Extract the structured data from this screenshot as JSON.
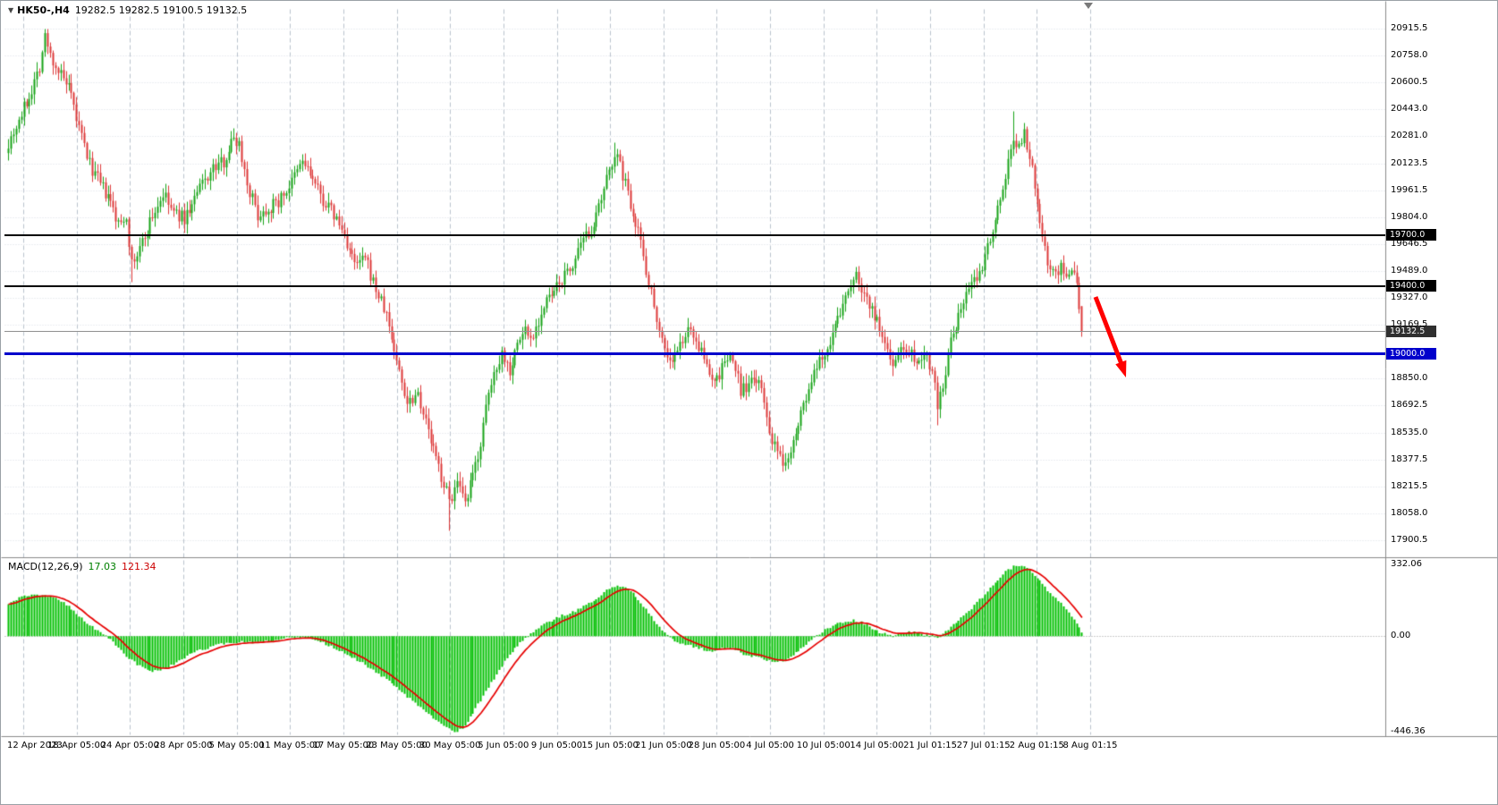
{
  "colors": {
    "up": "#17a317",
    "down": "#dd3838",
    "macd_hist": "#00bf00",
    "macd_signal": "#e60000",
    "grid_v": "#b9c2cc",
    "grid_h": "#d9dde2",
    "separator": "#8a8a8a",
    "axis_text": "#000000"
  },
  "symbol_bar": {
    "triangle_icon": "down-triangle",
    "symbol_tf": "HK50-,H4",
    "ohlc": "19282.5 19282.5 19100.5 19132.5"
  },
  "macd_label": {
    "name": "MACD(12,26,9)",
    "main_value": "17.03",
    "signal_value": "121.34"
  },
  "arrow": {
    "color": "#ff0000",
    "note": "red down-right arrow annotation after last candle, pointing below 19000 line"
  },
  "chart_data": {
    "type": "candlestick",
    "symbol": "HK50-",
    "timeframe": "H4",
    "last_bar": {
      "open": 19282.5,
      "high": 19282.5,
      "low": 19100.5,
      "close": 19132.5
    },
    "price_axis": {
      "max": 20915.5,
      "min": 17900.5,
      "labels": [
        "20915.5",
        "20758.0",
        "20600.5",
        "20443.0",
        "20281.0",
        "20123.5",
        "19961.5",
        "19804.0",
        "19646.5",
        "19489.0",
        "19327.0",
        "19169.5",
        "",
        "18850.0",
        "18692.5",
        "18535.0",
        "18377.5",
        "18215.5",
        "18058.0",
        "17900.5"
      ]
    },
    "hlines": [
      {
        "price": 19700.0,
        "color": "#000000",
        "width": 2,
        "role": "resistance"
      },
      {
        "price": 19400.0,
        "color": "#000000",
        "width": 2,
        "role": "support-broken"
      },
      {
        "price": 19132.5,
        "color": "#909090",
        "width": 1,
        "role": "current-price"
      },
      {
        "price": 19000.0,
        "color": "#0000cc",
        "width": 3,
        "role": "target-support"
      }
    ],
    "badges": [
      {
        "label": "19700.0",
        "price": 19700.0,
        "bg": "#000000",
        "fg": "#ffffff"
      },
      {
        "label": "19400.0",
        "price": 19400.0,
        "bg": "#000000",
        "fg": "#ffffff"
      },
      {
        "label": "19132.5",
        "price": 19132.5,
        "bg": "#2f2f2f",
        "fg": "#ffffff"
      },
      {
        "label": "19000.0",
        "price": 19000.0,
        "bg": "#0000cc",
        "fg": "#ffffff"
      }
    ],
    "time_axis": [
      "12 Apr 2023",
      "18 Apr 05:00",
      "24 Apr 05:00",
      "28 Apr 05:00",
      "5 May 05:00",
      "11 May 05:00",
      "17 May 05:00",
      "23 May 05:00",
      "30 May 05:00",
      "5 Jun 05:00",
      "9 Jun 05:00",
      "15 Jun 05:00",
      "21 Jun 05:00",
      "28 Jun 05:00",
      "4 Jul 05:00",
      "10 Jul 05:00",
      "14 Jul 05:00",
      "21 Jul 01:15",
      "27 Jul 01:15",
      "2 Aug 01:15",
      "8 Aug 01:15"
    ],
    "candles": {
      "count": 410,
      "seed": 7,
      "close_waypoints": [
        [
          0,
          20250
        ],
        [
          4,
          20380
        ],
        [
          8,
          20520
        ],
        [
          12,
          20700
        ],
        [
          14,
          20870
        ],
        [
          16,
          20760
        ],
        [
          20,
          20640
        ],
        [
          23,
          20560
        ],
        [
          27,
          20330
        ],
        [
          31,
          20120
        ],
        [
          35,
          20000
        ],
        [
          39,
          19890
        ],
        [
          42,
          19760
        ],
        [
          45,
          19820
        ],
        [
          47,
          19520
        ],
        [
          50,
          19620
        ],
        [
          54,
          19780
        ],
        [
          59,
          19940
        ],
        [
          63,
          19830
        ],
        [
          67,
          19800
        ],
        [
          70,
          19880
        ],
        [
          74,
          20010
        ],
        [
          78,
          20090
        ],
        [
          82,
          20140
        ],
        [
          86,
          20280
        ],
        [
          88,
          20240
        ],
        [
          91,
          20010
        ],
        [
          95,
          19820
        ],
        [
          99,
          19860
        ],
        [
          103,
          19900
        ],
        [
          108,
          20010
        ],
        [
          112,
          20140
        ],
        [
          115,
          20060
        ],
        [
          119,
          19930
        ],
        [
          124,
          19820
        ],
        [
          128,
          19700
        ],
        [
          132,
          19520
        ],
        [
          136,
          19560
        ],
        [
          140,
          19380
        ],
        [
          144,
          19230
        ],
        [
          148,
          18960
        ],
        [
          152,
          18720
        ],
        [
          156,
          18780
        ],
        [
          160,
          18540
        ],
        [
          164,
          18330
        ],
        [
          168,
          18140
        ],
        [
          171,
          18230
        ],
        [
          174,
          18100
        ],
        [
          177,
          18280
        ],
        [
          180,
          18480
        ],
        [
          183,
          18760
        ],
        [
          186,
          18940
        ],
        [
          188,
          19010
        ],
        [
          191,
          18910
        ],
        [
          194,
          19060
        ],
        [
          197,
          19150
        ],
        [
          199,
          19090
        ],
        [
          202,
          19200
        ],
        [
          205,
          19310
        ],
        [
          208,
          19360
        ],
        [
          211,
          19440
        ],
        [
          214,
          19500
        ],
        [
          217,
          19590
        ],
        [
          220,
          19690
        ],
        [
          224,
          19800
        ],
        [
          227,
          19950
        ],
        [
          229,
          20090
        ],
        [
          231,
          20190
        ],
        [
          234,
          20060
        ],
        [
          237,
          19890
        ],
        [
          240,
          19740
        ],
        [
          243,
          19500
        ],
        [
          246,
          19290
        ],
        [
          249,
          19090
        ],
        [
          252,
          18950
        ],
        [
          255,
          19010
        ],
        [
          258,
          19120
        ],
        [
          261,
          19130
        ],
        [
          264,
          19000
        ],
        [
          267,
          18890
        ],
        [
          270,
          18840
        ],
        [
          273,
          18960
        ],
        [
          276,
          18970
        ],
        [
          279,
          18790
        ],
        [
          282,
          18810
        ],
        [
          285,
          18860
        ],
        [
          288,
          18720
        ],
        [
          291,
          18480
        ],
        [
          294,
          18380
        ],
        [
          296,
          18340
        ],
        [
          299,
          18520
        ],
        [
          302,
          18650
        ],
        [
          305,
          18790
        ],
        [
          308,
          18910
        ],
        [
          311,
          19010
        ],
        [
          314,
          19120
        ],
        [
          317,
          19240
        ],
        [
          320,
          19390
        ],
        [
          323,
          19460
        ],
        [
          326,
          19360
        ],
        [
          329,
          19270
        ],
        [
          332,
          19140
        ],
        [
          335,
          19010
        ],
        [
          337,
          18960
        ],
        [
          340,
          19030
        ],
        [
          343,
          19030
        ],
        [
          346,
          18970
        ],
        [
          349,
          19010
        ],
        [
          352,
          18920
        ],
        [
          354,
          18700
        ],
        [
          356,
          18820
        ],
        [
          359,
          19060
        ],
        [
          362,
          19210
        ],
        [
          365,
          19360
        ],
        [
          368,
          19430
        ],
        [
          371,
          19520
        ],
        [
          374,
          19700
        ],
        [
          377,
          19870
        ],
        [
          380,
          20040
        ],
        [
          383,
          20280
        ],
        [
          385,
          20230
        ],
        [
          387,
          20300
        ],
        [
          389,
          20180
        ],
        [
          391,
          19980
        ],
        [
          393,
          19800
        ],
        [
          395,
          19620
        ],
        [
          397,
          19500
        ],
        [
          399,
          19470
        ],
        [
          401,
          19520
        ],
        [
          403,
          19460
        ],
        [
          405,
          19490
        ],
        [
          407,
          19400
        ],
        [
          408,
          19283
        ],
        [
          409,
          19132.5
        ]
      ],
      "wick_overrides": {
        "14": {
          "high": 20915.5
        },
        "47": {
          "low": 19425
        },
        "168": {
          "low": 17958
        },
        "231": {
          "high": 20245
        },
        "354": {
          "low": 18580
        },
        "383": {
          "high": 20430
        }
      },
      "last": [
        19282.5,
        19282.5,
        19100.5,
        19132.5
      ]
    },
    "macd": {
      "params": "12,26,9",
      "current_main": 17.03,
      "current_signal": 121.34,
      "signal_period": 9,
      "axis": {
        "max": 332.06,
        "zero": 0.0,
        "min": -446.36,
        "labels": [
          "332.06",
          "0.00",
          "-446.36"
        ]
      },
      "hist_waypoints": [
        [
          0,
          150
        ],
        [
          5,
          185
        ],
        [
          10,
          195
        ],
        [
          15,
          188
        ],
        [
          20,
          165
        ],
        [
          25,
          118
        ],
        [
          30,
          60
        ],
        [
          35,
          15
        ],
        [
          40,
          -25
        ],
        [
          45,
          -95
        ],
        [
          50,
          -140
        ],
        [
          55,
          -162
        ],
        [
          60,
          -150
        ],
        [
          65,
          -118
        ],
        [
          70,
          -80
        ],
        [
          75,
          -58
        ],
        [
          80,
          -40
        ],
        [
          85,
          -30
        ],
        [
          90,
          -26
        ],
        [
          95,
          -30
        ],
        [
          100,
          -20
        ],
        [
          105,
          -8
        ],
        [
          110,
          -4
        ],
        [
          115,
          -12
        ],
        [
          120,
          -32
        ],
        [
          125,
          -60
        ],
        [
          130,
          -92
        ],
        [
          135,
          -125
        ],
        [
          140,
          -165
        ],
        [
          145,
          -212
        ],
        [
          150,
          -262
        ],
        [
          155,
          -312
        ],
        [
          160,
          -362
        ],
        [
          165,
          -412
        ],
        [
          170,
          -446
        ],
        [
          173,
          -428
        ],
        [
          176,
          -378
        ],
        [
          180,
          -298
        ],
        [
          185,
          -198
        ],
        [
          190,
          -98
        ],
        [
          195,
          -28
        ],
        [
          200,
          22
        ],
        [
          205,
          60
        ],
        [
          210,
          92
        ],
        [
          215,
          112
        ],
        [
          220,
          142
        ],
        [
          225,
          182
        ],
        [
          229,
          222
        ],
        [
          232,
          236
        ],
        [
          235,
          224
        ],
        [
          238,
          198
        ],
        [
          241,
          158
        ],
        [
          244,
          108
        ],
        [
          247,
          58
        ],
        [
          250,
          18
        ],
        [
          253,
          -12
        ],
        [
          256,
          -32
        ],
        [
          259,
          -42
        ],
        [
          262,
          -52
        ],
        [
          265,
          -62
        ],
        [
          268,
          -72
        ],
        [
          271,
          -62
        ],
        [
          274,
          -52
        ],
        [
          277,
          -62
        ],
        [
          280,
          -82
        ],
        [
          283,
          -92
        ],
        [
          286,
          -102
        ],
        [
          289,
          -112
        ],
        [
          292,
          -120
        ],
        [
          295,
          -118
        ],
        [
          298,
          -98
        ],
        [
          301,
          -68
        ],
        [
          304,
          -38
        ],
        [
          307,
          -8
        ],
        [
          310,
          22
        ],
        [
          313,
          42
        ],
        [
          316,
          60
        ],
        [
          319,
          70
        ],
        [
          322,
          74
        ],
        [
          325,
          64
        ],
        [
          328,
          44
        ],
        [
          331,
          24
        ],
        [
          334,
          10
        ],
        [
          337,
          2
        ],
        [
          340,
          12
        ],
        [
          343,
          20
        ],
        [
          346,
          14
        ],
        [
          349,
          8
        ],
        [
          352,
          0
        ],
        [
          354,
          -12
        ],
        [
          356,
          10
        ],
        [
          359,
          42
        ],
        [
          362,
          72
        ],
        [
          365,
          104
        ],
        [
          368,
          142
        ],
        [
          371,
          182
        ],
        [
          374,
          222
        ],
        [
          377,
          262
        ],
        [
          380,
          302
        ],
        [
          383,
          324
        ],
        [
          386,
          332
        ],
        [
          389,
          308
        ],
        [
          392,
          268
        ],
        [
          395,
          228
        ],
        [
          398,
          188
        ],
        [
          401,
          152
        ],
        [
          404,
          112
        ],
        [
          407,
          62
        ],
        [
          409,
          17.03
        ]
      ]
    }
  }
}
